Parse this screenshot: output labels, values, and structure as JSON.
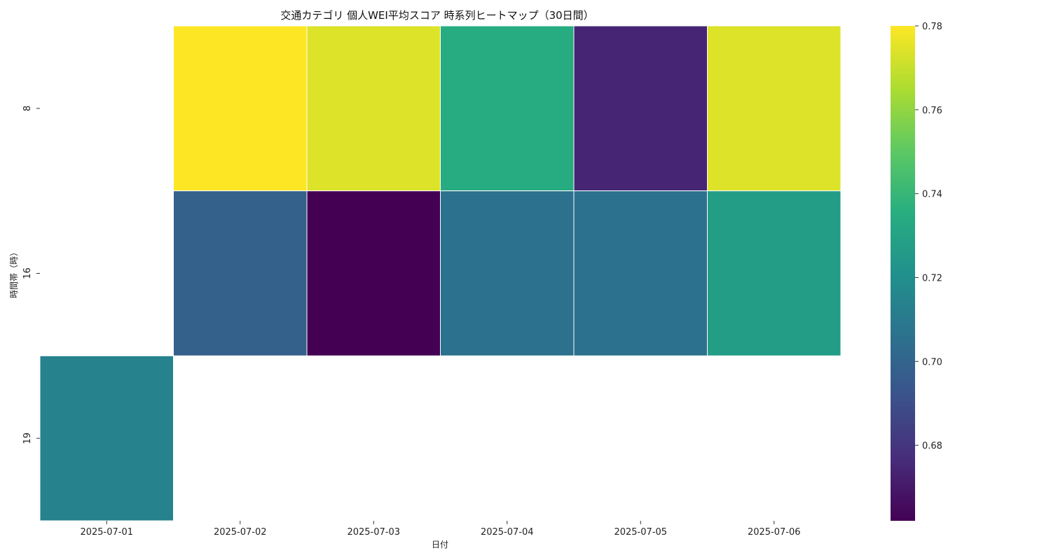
{
  "chart_data": {
    "type": "heatmap",
    "title": "交通カテゴリ 個人WEI平均スコア 時系列ヒートマップ（30日間）",
    "xlabel": "日付",
    "ylabel": "時間帯（時）",
    "x_categories": [
      "2025-07-01",
      "2025-07-02",
      "2025-07-03",
      "2025-07-04",
      "2025-07-05",
      "2025-07-06"
    ],
    "y_categories": [
      "8",
      "16",
      "19"
    ],
    "values": [
      [
        null,
        0.78,
        0.774,
        0.734,
        0.674,
        0.774
      ],
      [
        null,
        0.698,
        0.662,
        0.706,
        0.706,
        0.727
      ],
      [
        0.714,
        null,
        null,
        null,
        null,
        null
      ]
    ],
    "colormap": "viridis",
    "vmin": 0.662,
    "vmax": 0.78,
    "colorbar_ticks": [
      "0.68",
      "0.70",
      "0.72",
      "0.74",
      "0.76",
      "0.78"
    ],
    "grid": false,
    "colorbar_position": "right"
  }
}
